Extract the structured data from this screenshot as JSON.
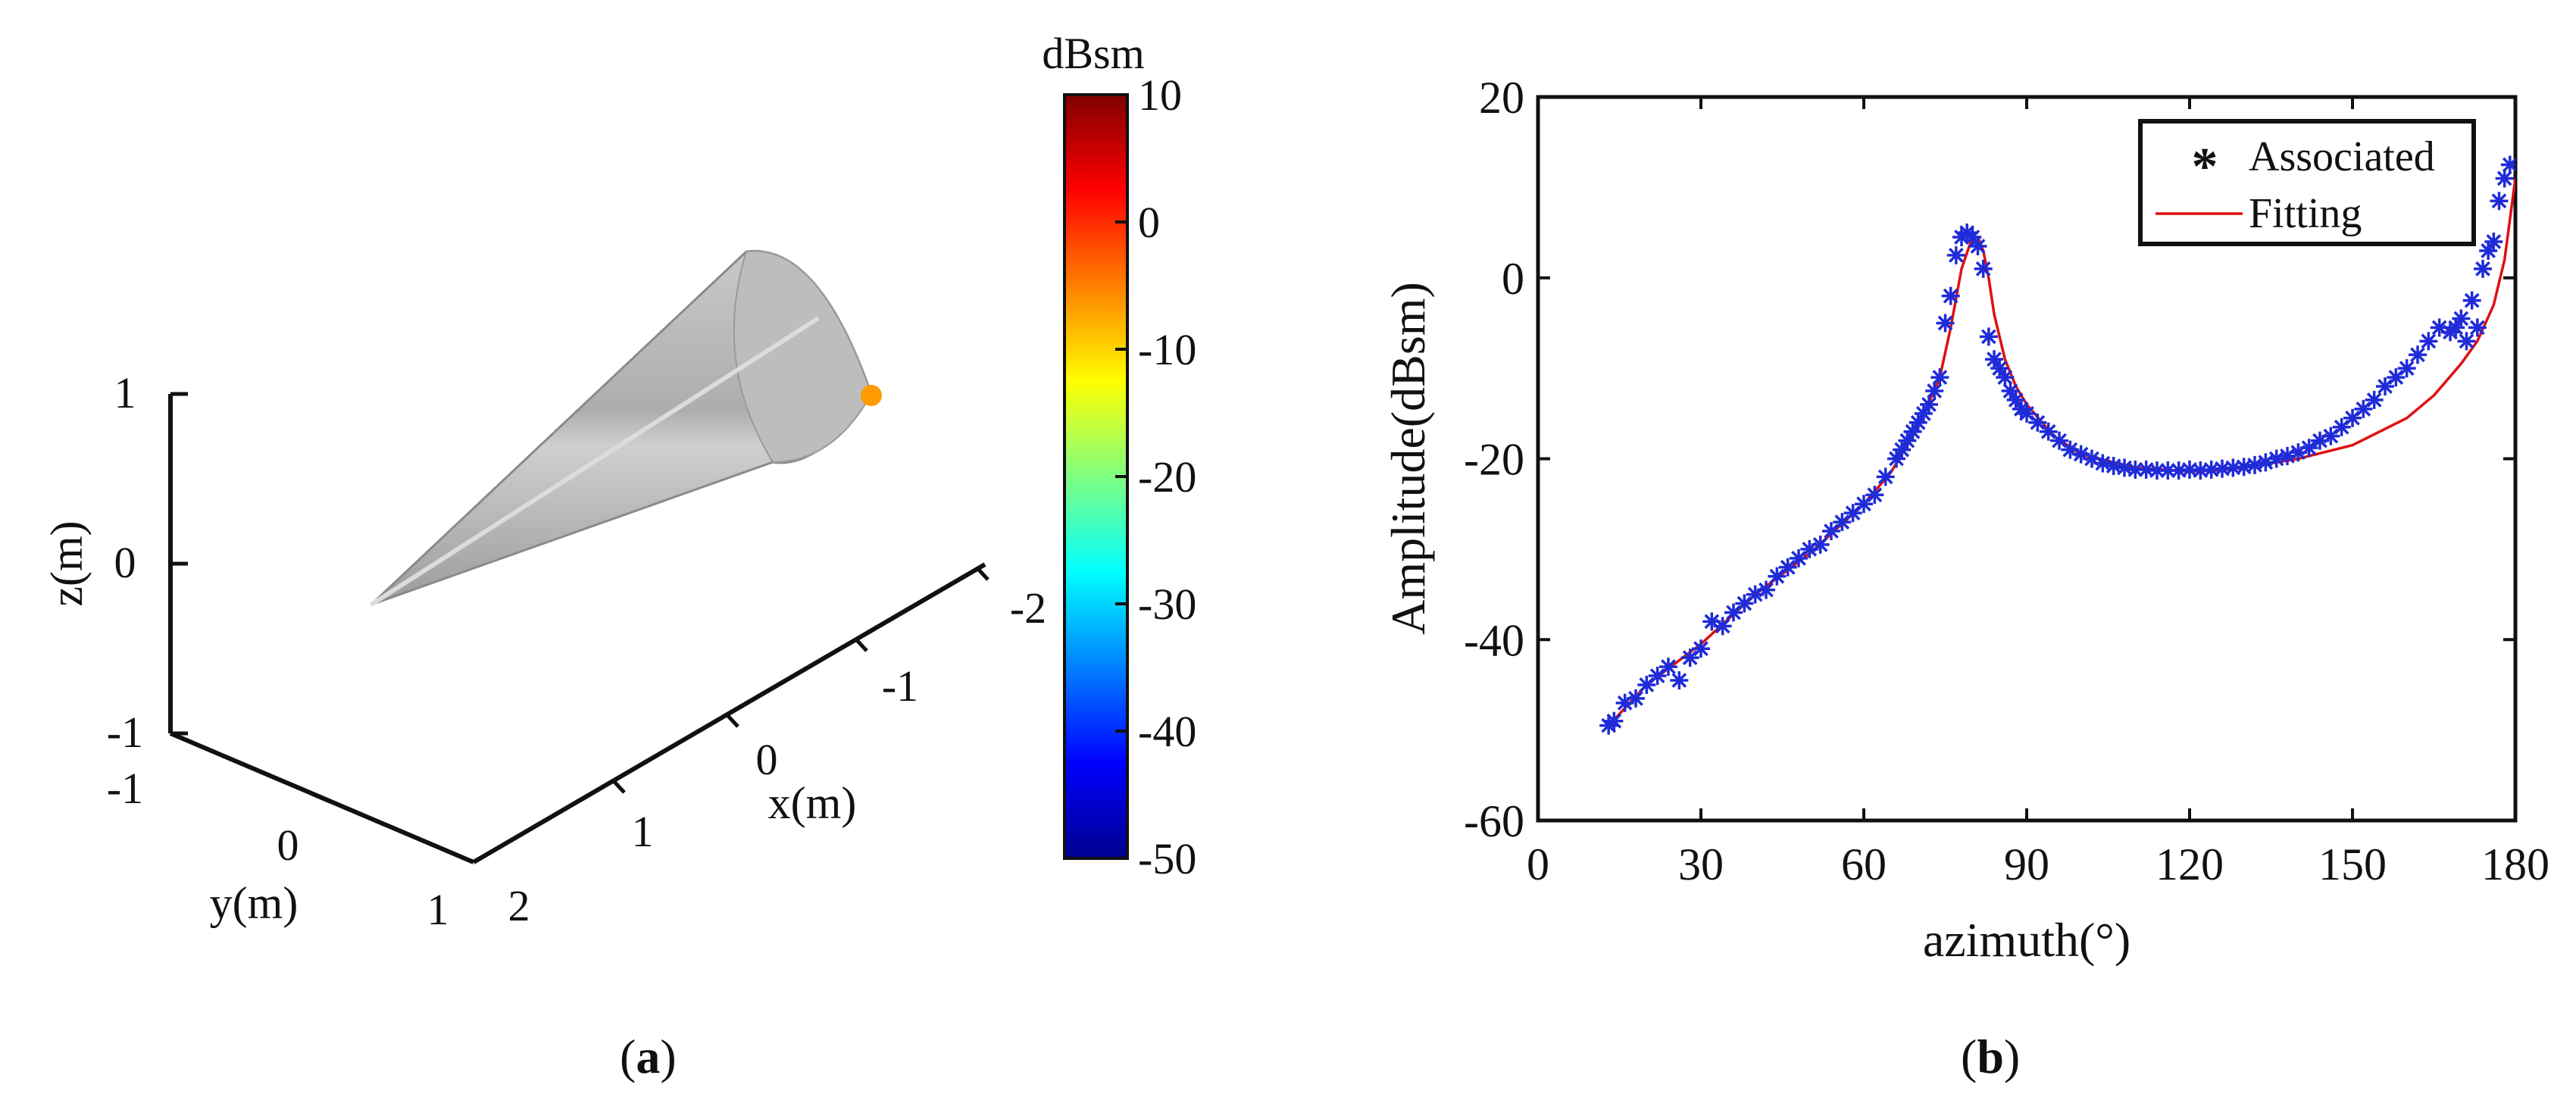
{
  "colors": {
    "marker": "#1f2bd8",
    "fit_line": "#e01010",
    "axis": "#111111",
    "cone_body": "#b8b8b8",
    "scatter_point": "#ff9a00"
  },
  "panel_a": {
    "label_open": "(",
    "label_letter": "a",
    "label_close": ")",
    "z_label": "z(m)",
    "y_label": "y(m)",
    "x_label": "x(m)",
    "z_ticks": [
      "1",
      "0",
      "-1"
    ],
    "y_ticks": [
      "-1",
      "0",
      "1"
    ],
    "x_ticks": [
      "2",
      "1",
      "0",
      "-1",
      "-2"
    ],
    "colorbar_title": "dBsm",
    "colorbar_ticks": [
      "10",
      "0",
      "-10",
      "-20",
      "-30",
      "-40",
      "-50"
    ],
    "colormap": "jet"
  },
  "panel_b": {
    "label_open": "(",
    "label_letter": "b",
    "label_close": ")"
  },
  "chart_data": [
    {
      "type": "scatter",
      "panel": "a",
      "view": "3d",
      "xlabel": "x(m)",
      "ylabel": "y(m)",
      "zlabel": "z(m)",
      "xlim": [
        -2,
        2
      ],
      "ylim": [
        -1,
        1
      ],
      "zlim": [
        -1,
        1
      ],
      "colorbar": {
        "label": "dBsm",
        "lim": [
          -50,
          10
        ],
        "colormap": "jet"
      },
      "points": [
        {
          "value_dBsm": -7
        }
      ]
    },
    {
      "type": "line",
      "panel": "b",
      "xlabel": "azimuth(°)",
      "ylabel": "Amplitude(dBsm)",
      "xlim": [
        0,
        180
      ],
      "ylim": [
        -60,
        20
      ],
      "xticks": [
        0,
        30,
        60,
        90,
        120,
        150,
        180
      ],
      "yticks": [
        -60,
        -40,
        -20,
        0,
        20
      ],
      "legend_position": "top-right",
      "series": [
        {
          "name": "Associated",
          "style": "markers",
          "marker": "*",
          "x": [
            13,
            14,
            16,
            18,
            20,
            22,
            24,
            26,
            28,
            30,
            32,
            34,
            36,
            38,
            40,
            42,
            44,
            46,
            48,
            50,
            52,
            54,
            56,
            58,
            60,
            62,
            64,
            66,
            67,
            68,
            69,
            70,
            71,
            72,
            73,
            74,
            75,
            76,
            77,
            78,
            79,
            80,
            81,
            82,
            83,
            84,
            85,
            86,
            87,
            88,
            89,
            90,
            92,
            94,
            96,
            98,
            100,
            102,
            104,
            106,
            108,
            110,
            112,
            114,
            116,
            118,
            120,
            122,
            124,
            126,
            128,
            130,
            132,
            134,
            136,
            138,
            140,
            142,
            144,
            146,
            148,
            150,
            152,
            154,
            156,
            158,
            160,
            162,
            164,
            166,
            168,
            169,
            170,
            171,
            172,
            173,
            174,
            175,
            176,
            177,
            178,
            179
          ],
          "y": [
            -49.5,
            -49,
            -47,
            -46.5,
            -45,
            -44,
            -43,
            -44.5,
            -42,
            -41,
            -38,
            -38.5,
            -37,
            -36,
            -35,
            -34.5,
            -33,
            -32,
            -31,
            -30,
            -29.5,
            -28,
            -27,
            -26,
            -25,
            -24,
            -22,
            -20,
            -19,
            -18,
            -17,
            -16,
            -15,
            -14,
            -12.5,
            -11,
            -5,
            -2,
            2.5,
            4.5,
            5,
            4.5,
            3.5,
            1,
            -6.5,
            -9,
            -10,
            -11,
            -12.5,
            -13.5,
            -14.5,
            -15,
            -16,
            -17,
            -18,
            -19,
            -19.5,
            -20,
            -20.5,
            -20.8,
            -21,
            -21.2,
            -21.2,
            -21.3,
            -21.3,
            -21.3,
            -21.2,
            -21.3,
            -21.2,
            -21.1,
            -21,
            -20.9,
            -20.7,
            -20.4,
            -20,
            -19.7,
            -19.3,
            -18.8,
            -18,
            -17.5,
            -16.5,
            -15.5,
            -14.5,
            -13.5,
            -12,
            -11,
            -10,
            -8.5,
            -7,
            -5.5,
            -6,
            -5.5,
            -4.5,
            -7,
            -2.5,
            -5.5,
            1,
            3,
            4,
            8.5,
            11,
            12.5
          ]
        },
        {
          "name": "Fitting",
          "style": "line",
          "x": [
            13,
            20,
            30,
            40,
            50,
            60,
            65,
            70,
            74,
            76,
            78,
            80,
            81,
            82,
            83,
            84,
            86,
            88,
            90,
            95,
            100,
            110,
            120,
            125,
            130,
            140,
            150,
            160,
            165,
            170,
            173,
            176,
            178,
            180
          ],
          "y": [
            -49.5,
            -45,
            -40.5,
            -35,
            -30.5,
            -25,
            -21.5,
            -16.5,
            -11,
            -5.5,
            1,
            4.5,
            4.5,
            3,
            0,
            -4,
            -9,
            -12,
            -14,
            -17.5,
            -19.5,
            -21,
            -21.4,
            -21.3,
            -21,
            -20,
            -18.5,
            -15.5,
            -13,
            -9.5,
            -7,
            -3,
            2,
            11
          ]
        }
      ]
    }
  ]
}
